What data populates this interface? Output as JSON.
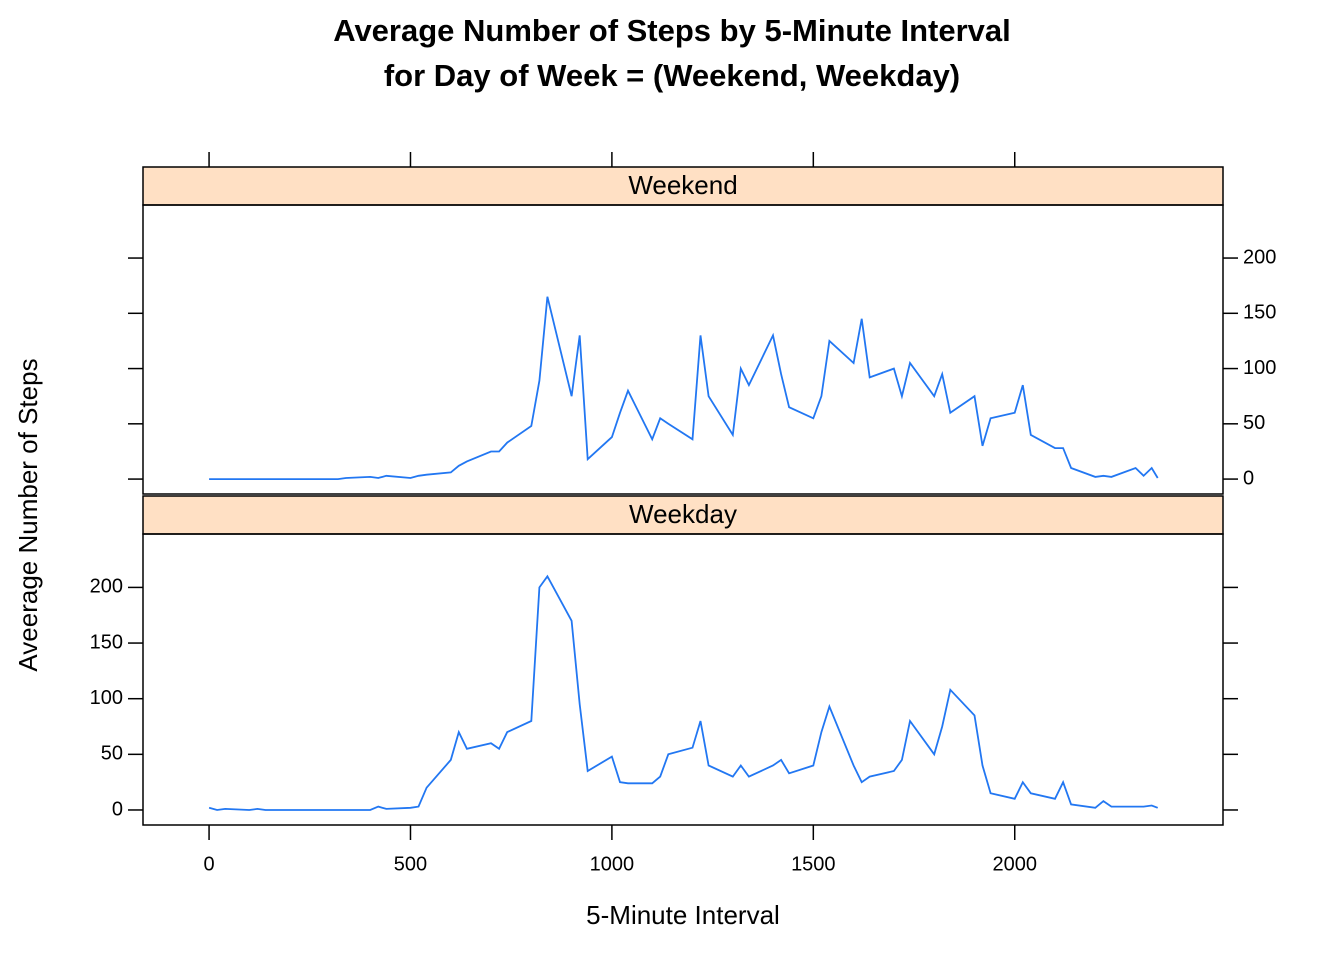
{
  "chart_data": {
    "type": "line",
    "title": [
      "Average Number of Steps by 5-Minute Interval",
      "for Day of Week = (Weekend, Weekday)"
    ],
    "x_label": "5-Minute Interval",
    "y_label": "Aveerage Number of Steps",
    "xlim": [
      -164,
      2517
    ],
    "xticks": [
      0,
      500,
      1000,
      1500,
      2000
    ],
    "ylim": [
      -13.5,
      248
    ],
    "yticks": [
      0,
      50,
      100,
      150,
      200
    ],
    "strip_color": "#ffe0c4",
    "x": [
      0,
      20,
      40,
      100,
      120,
      140,
      200,
      220,
      240,
      300,
      320,
      340,
      400,
      420,
      440,
      500,
      520,
      540,
      600,
      620,
      640,
      700,
      720,
      740,
      800,
      820,
      840,
      900,
      920,
      940,
      1000,
      1020,
      1040,
      1100,
      1120,
      1140,
      1200,
      1220,
      1240,
      1300,
      1320,
      1340,
      1400,
      1420,
      1440,
      1500,
      1520,
      1540,
      1600,
      1620,
      1640,
      1700,
      1720,
      1740,
      1800,
      1820,
      1840,
      1900,
      1920,
      1940,
      2000,
      2020,
      2040,
      2100,
      2120,
      2140,
      2200,
      2220,
      2240,
      2300,
      2320,
      2340,
      2355
    ],
    "series": [
      {
        "name": "Weekend",
        "color": "#2277f2",
        "values": [
          0,
          0,
          0,
          0,
          0,
          0,
          0,
          0,
          0,
          0,
          0,
          1,
          2,
          1,
          3,
          1,
          3,
          4,
          6,
          12,
          16,
          25,
          25,
          33,
          48,
          89,
          165,
          75,
          130,
          18,
          38,
          60,
          80,
          36,
          55,
          50,
          36,
          130,
          75,
          40,
          100,
          85,
          130,
          95,
          65,
          55,
          75,
          125,
          105,
          145,
          92,
          100,
          75,
          105,
          75,
          95,
          60,
          75,
          30,
          55,
          60,
          85,
          40,
          28,
          28,
          10,
          2,
          3,
          2,
          10,
          3,
          10,
          1
        ]
      },
      {
        "name": "Weekday",
        "color": "#2277f2",
        "values": [
          2,
          0,
          1,
          0,
          1,
          0,
          0,
          0,
          0,
          0,
          0,
          0,
          0,
          3,
          1,
          2,
          3,
          20,
          45,
          70,
          55,
          60,
          55,
          70,
          80,
          200,
          210,
          170,
          95,
          35,
          48,
          25,
          24,
          24,
          30,
          50,
          56,
          80,
          40,
          30,
          40,
          30,
          40,
          45,
          33,
          40,
          70,
          93,
          40,
          25,
          30,
          35,
          45,
          80,
          50,
          75,
          108,
          85,
          40,
          15,
          10,
          25,
          15,
          10,
          25,
          5,
          2,
          8,
          3,
          3,
          3,
          4,
          2
        ]
      }
    ]
  }
}
